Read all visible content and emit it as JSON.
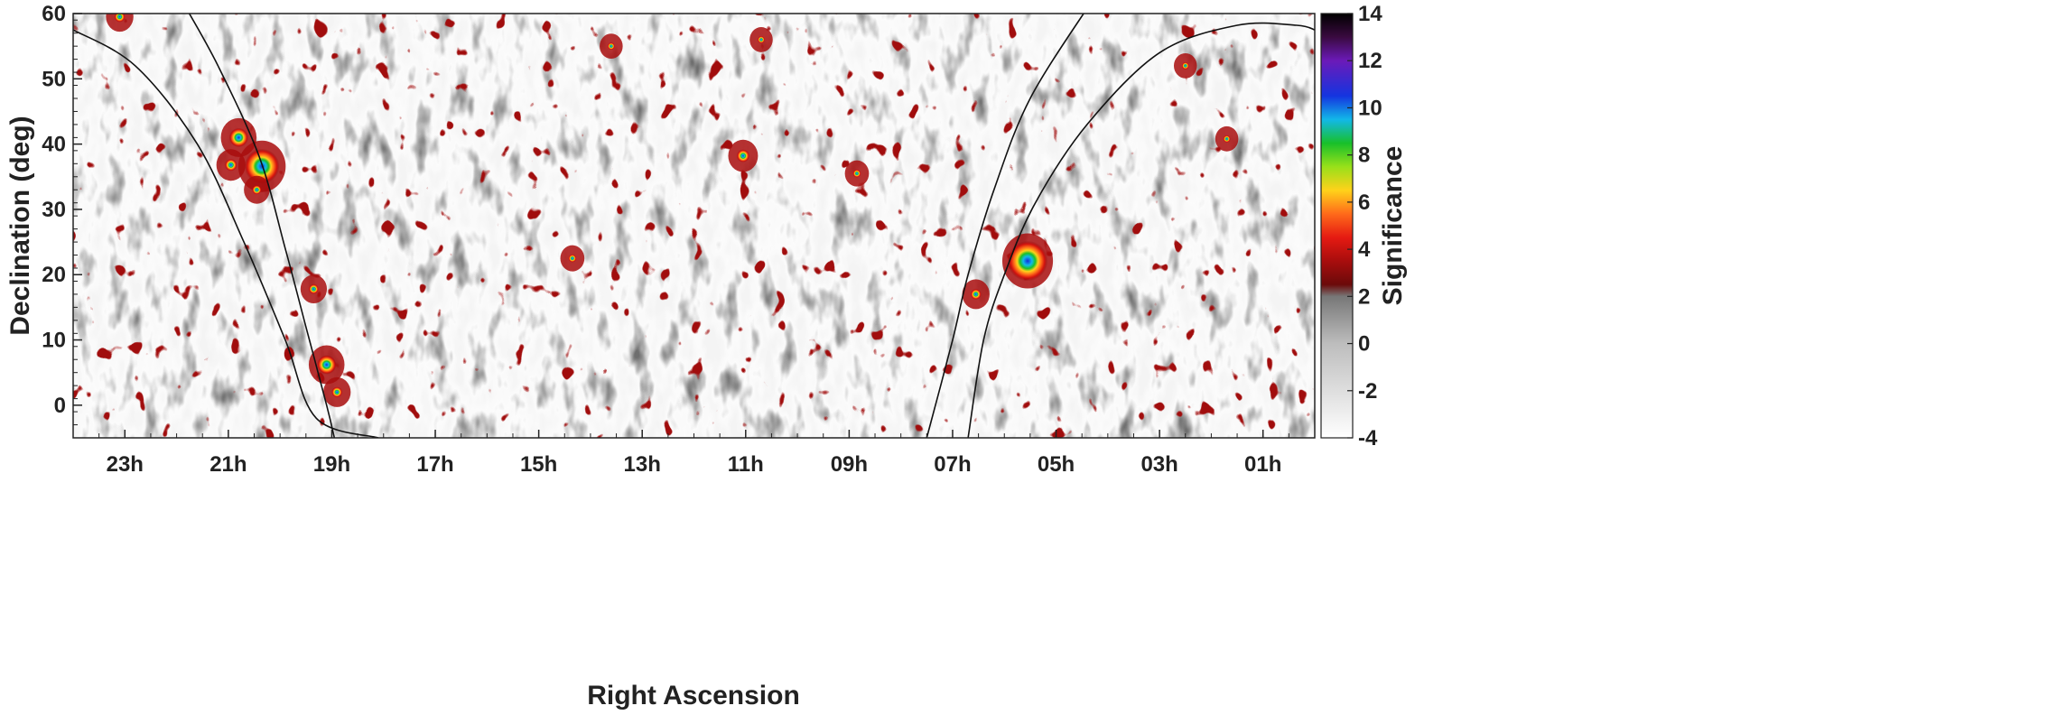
{
  "chart_data": {
    "type": "heatmap",
    "title": "",
    "xlabel": "Right Ascension",
    "ylabel": "Declination (deg)",
    "colorbar_label": "Significance",
    "x_unit": "hours",
    "x_reversed": true,
    "xlim": [
      24,
      0
    ],
    "ylim": [
      -5,
      60
    ],
    "x_ticks": [
      {
        "value": 23,
        "label": "23h"
      },
      {
        "value": 21,
        "label": "21h"
      },
      {
        "value": 19,
        "label": "19h"
      },
      {
        "value": 17,
        "label": "17h"
      },
      {
        "value": 15,
        "label": "15h"
      },
      {
        "value": 13,
        "label": "13h"
      },
      {
        "value": 11,
        "label": "11h"
      },
      {
        "value": 9,
        "label": "09h"
      },
      {
        "value": 7,
        "label": "07h"
      },
      {
        "value": 5,
        "label": "05h"
      },
      {
        "value": 3,
        "label": "03h"
      },
      {
        "value": 1,
        "label": "01h"
      }
    ],
    "y_ticks": [
      {
        "value": 0,
        "label": "0"
      },
      {
        "value": 10,
        "label": "10"
      },
      {
        "value": 20,
        "label": "20"
      },
      {
        "value": 30,
        "label": "30"
      },
      {
        "value": 40,
        "label": "40"
      },
      {
        "value": 50,
        "label": "50"
      },
      {
        "value": 60,
        "label": "60"
      }
    ],
    "colorbar": {
      "range": [
        -4,
        14
      ],
      "ticks": [
        {
          "value": 14,
          "label": "14"
        },
        {
          "value": 12,
          "label": "12"
        },
        {
          "value": 10,
          "label": "10"
        },
        {
          "value": 8,
          "label": "8"
        },
        {
          "value": 6,
          "label": "6"
        },
        {
          "value": 4,
          "label": "4"
        },
        {
          "value": 2,
          "label": "2"
        },
        {
          "value": 0,
          "label": "0"
        },
        {
          "value": -2,
          "label": "-2"
        },
        {
          "value": -4,
          "label": "-4"
        }
      ],
      "stops": [
        {
          "value": -4,
          "color": "#ffffff"
        },
        {
          "value": 0,
          "color": "#bdbdbd"
        },
        {
          "value": 2,
          "color": "#777777"
        },
        {
          "value": 2.5,
          "color": "#6b0a0a"
        },
        {
          "value": 3.5,
          "color": "#a80d0d"
        },
        {
          "value": 4.5,
          "color": "#e51a12"
        },
        {
          "value": 5.5,
          "color": "#ff6a1a"
        },
        {
          "value": 6.5,
          "color": "#ffd21a"
        },
        {
          "value": 7.5,
          "color": "#98e01a"
        },
        {
          "value": 8.5,
          "color": "#18c02a"
        },
        {
          "value": 9.5,
          "color": "#12b8e8"
        },
        {
          "value": 10.5,
          "color": "#1434e0"
        },
        {
          "value": 12,
          "color": "#6b1ab8"
        },
        {
          "value": 13,
          "color": "#3a0a40"
        },
        {
          "value": 14,
          "color": "#000000"
        }
      ]
    },
    "galactic_plane_curves": [
      [
        [
          21.9,
          62
        ],
        [
          21.2,
          52
        ],
        [
          20.4,
          38
        ],
        [
          19.9,
          24
        ],
        [
          19.5,
          12
        ],
        [
          19.1,
          0
        ],
        [
          18.95,
          -5
        ]
      ],
      [
        [
          24.0,
          57.5
        ],
        [
          22.8,
          52
        ],
        [
          21.6,
          40
        ],
        [
          20.7,
          25
        ],
        [
          19.9,
          10
        ],
        [
          19.3,
          -2
        ],
        [
          18.1,
          -5
        ]
      ],
      [
        [
          7.5,
          -5
        ],
        [
          7.0,
          10
        ],
        [
          6.7,
          20
        ],
        [
          6.2,
          33
        ],
        [
          5.5,
          47
        ],
        [
          4.3,
          62
        ]
      ],
      [
        [
          6.7,
          -5
        ],
        [
          6.4,
          10
        ],
        [
          6.0,
          20
        ],
        [
          5.4,
          31
        ],
        [
          4.4,
          43
        ],
        [
          3.0,
          54
        ],
        [
          1.5,
          58.2
        ],
        [
          0.35,
          58.2
        ],
        [
          0.0,
          57.5
        ]
      ]
    ],
    "hotspots": [
      {
        "ra": 20.35,
        "dec": 36.6,
        "peak": 10.5
      },
      {
        "ra": 20.8,
        "dec": 41.0,
        "peak": 7.0
      },
      {
        "ra": 20.95,
        "dec": 36.8,
        "peak": 5.0
      },
      {
        "ra": 20.45,
        "dec": 33.0,
        "peak": 4.0
      },
      {
        "ra": 19.1,
        "dec": 6.2,
        "peak": 7.0
      },
      {
        "ra": 18.9,
        "dec": 2.0,
        "peak": 4.5
      },
      {
        "ra": 19.35,
        "dec": 17.8,
        "peak": 4.2
      },
      {
        "ra": 5.55,
        "dec": 22.1,
        "peak": 11.5
      },
      {
        "ra": 6.55,
        "dec": 17.0,
        "peak": 4.5
      },
      {
        "ra": 11.05,
        "dec": 38.2,
        "peak": 5.2
      },
      {
        "ra": 23.1,
        "dec": 59.5,
        "peak": 4.5
      },
      {
        "ra": 13.6,
        "dec": 55.0,
        "peak": 3.2
      },
      {
        "ra": 14.35,
        "dec": 22.5,
        "peak": 3.5
      },
      {
        "ra": 8.85,
        "dec": 35.5,
        "peak": 3.5
      },
      {
        "ra": 10.7,
        "dec": 56.0,
        "peak": 3.2
      },
      {
        "ra": 2.5,
        "dec": 52.0,
        "peak": 3.2
      },
      {
        "ra": 1.7,
        "dec": 40.8,
        "peak": 3.2
      }
    ]
  }
}
